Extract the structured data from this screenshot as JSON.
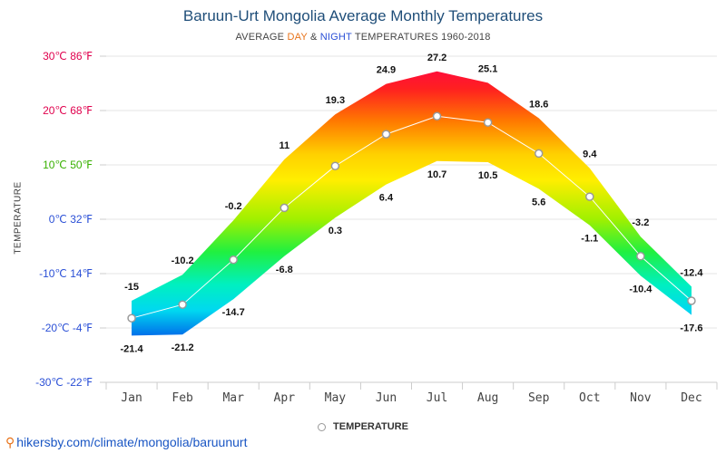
{
  "title": "Baruun-Urt Mongolia Average Monthly Temperatures",
  "subtitle": {
    "prefix": "AVERAGE ",
    "day": "DAY",
    "amp": " & ",
    "night": "NIGHT",
    "suffix": " TEMPERATURES 1960-2018"
  },
  "source": "hikersby.com/climate/mongolia/baruunurt",
  "colors": {
    "day": "#e8731a",
    "night": "#2a4fd6",
    "title": "#1f4e79",
    "source": "#1a56c4"
  },
  "chart_data": {
    "type": "area",
    "categories": [
      "Jan",
      "Feb",
      "Mar",
      "Apr",
      "May",
      "Jun",
      "Jul",
      "Aug",
      "Sep",
      "Oct",
      "Nov",
      "Dec"
    ],
    "ylabel": "TEMPERATURE",
    "ylim": [
      -30,
      30
    ],
    "y_ticks": [
      {
        "value": 30,
        "label": "30℃ 86℉",
        "color": "#e0004d"
      },
      {
        "value": 20,
        "label": "20℃ 68℉",
        "color": "#e0004d"
      },
      {
        "value": 10,
        "label": "10℃ 50℉",
        "color": "#38b000"
      },
      {
        "value": 0,
        "label": "0℃ 32℉",
        "color": "#2a4fd6"
      },
      {
        "value": -10,
        "label": "-10℃ 14℉",
        "color": "#2a4fd6"
      },
      {
        "value": -20,
        "label": "-20℃ -4℉",
        "color": "#2a4fd6"
      },
      {
        "value": -30,
        "label": "-30℃ -22℉",
        "color": "#2a4fd6"
      }
    ],
    "series": [
      {
        "key": "day",
        "values": [
          -15,
          -10.2,
          -0.2,
          11,
          19.3,
          24.9,
          27.2,
          25.1,
          18.6,
          9.4,
          -3.2,
          -12.4
        ]
      },
      {
        "key": "night",
        "values": [
          -21.4,
          -21.2,
          -14.7,
          -6.8,
          0.3,
          6.4,
          10.7,
          10.5,
          5.6,
          -1.1,
          -10.4,
          -17.6
        ]
      },
      {
        "name": "TEMPERATURE",
        "values": [
          -18.2,
          -15.7,
          -7.45,
          2.1,
          9.8,
          15.65,
          18.95,
          17.8,
          12.1,
          4.15,
          -6.8,
          -15.0
        ]
      }
    ],
    "day_labels": [
      "-15",
      "-10.2",
      "-0.2",
      "11",
      "19.3",
      "24.9",
      "27.2",
      "25.1",
      "18.6",
      "9.4",
      "-3.2",
      "-12.4"
    ],
    "night_labels": [
      "-21.4",
      "-21.2",
      "-14.7",
      "-6.8",
      "0.3",
      "6.4",
      "10.7",
      "10.5",
      "5.6",
      "-1.1",
      "-10.4",
      "-17.6"
    ],
    "legend": "TEMPERATURE",
    "legend_position": "bottom-center",
    "grid": true
  }
}
